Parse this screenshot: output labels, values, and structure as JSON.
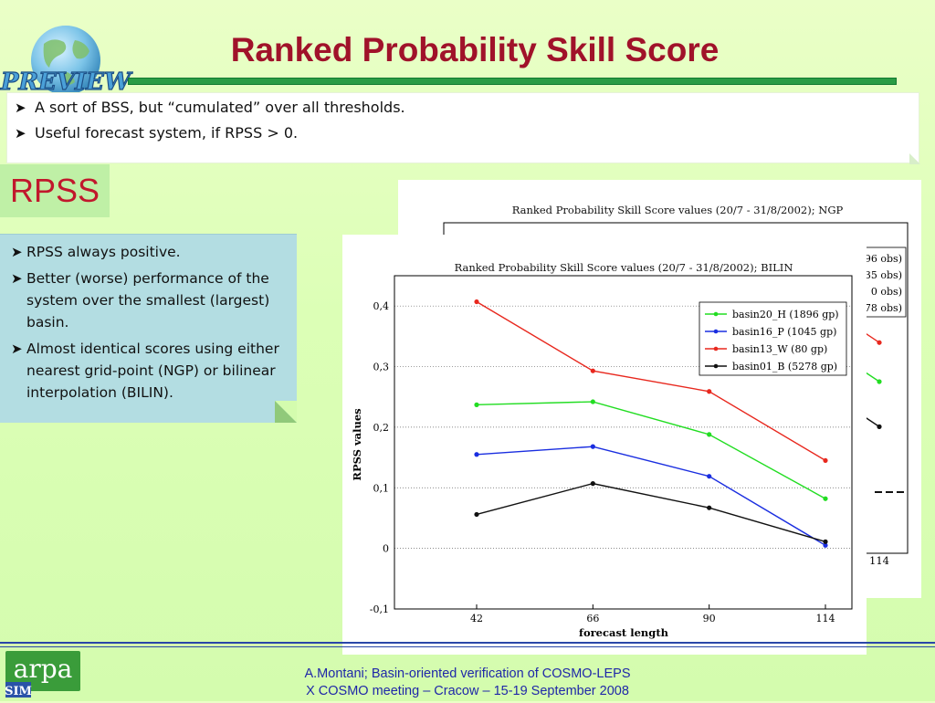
{
  "logo_text": "PREVIEW",
  "slide_title": "Ranked Probability Skill Score",
  "top_bullets": [
    "A sort of BSS, but “cumulated” over all thresholds.",
    "Useful forecast system, if RPSS > 0."
  ],
  "section_label": "RPSS",
  "side_bullets": [
    "RPSS always positive.",
    "Better (worse) performance of the system over the smallest (largest) basin.",
    "Almost identical scores using either nearest grid-point (NGP) or bilinear interpolation (BILIN)."
  ],
  "footer": {
    "line1": "A.Montani; Basin-oriented verification of COSMO-LEPS",
    "line2": "X COSMO meeting – Cracow – 15-19 September 2008",
    "org_logo": "arpa SIM"
  },
  "chart_data": [
    {
      "type": "line",
      "title": "Ranked Probability Skill Score values (20/7 - 31/8/2002); NGP",
      "partially_hidden": true,
      "visible_legend_fragments": [
        "96 obs)",
        "35 obs)",
        "0 obs)",
        "78 obs)"
      ],
      "visible_x_tick": "114",
      "visible_points": [
        {
          "x": 114,
          "y": 0.24,
          "color": "#e8281e"
        },
        {
          "x": 114,
          "y": 0.175,
          "color": "#22dd22"
        },
        {
          "x": 114,
          "y": 0.1,
          "color": "#111111"
        }
      ]
    },
    {
      "type": "line",
      "title": "Ranked Probability Skill Score values (20/7 - 31/8/2002); BILIN",
      "xlabel": "forecast length",
      "ylabel": "RPSS values",
      "x": [
        42,
        66,
        90,
        114
      ],
      "x_tick_labels": [
        "42",
        "66",
        "90",
        "114"
      ],
      "ylim": [
        -0.1,
        0.45
      ],
      "y_ticks": [
        -0.1,
        0,
        0.1,
        0.2,
        0.3,
        0.4
      ],
      "y_tick_labels": [
        "-0,1",
        "0",
        "0,1",
        "0,2",
        "0,3",
        "0,4"
      ],
      "grid": "dotted horizontal",
      "legend_position": "top-right",
      "series": [
        {
          "name": "basin20_H (1896 gp)",
          "color": "#22dd22",
          "values": [
            0.237,
            0.242,
            0.188,
            0.082
          ]
        },
        {
          "name": "basin16_P (1045 gp)",
          "color": "#1a2ee0",
          "values": [
            0.155,
            0.168,
            0.119,
            0.005
          ]
        },
        {
          "name": "basin13_W (80 gp)",
          "color": "#e8281e",
          "values": [
            0.407,
            0.293,
            0.259,
            0.145
          ]
        },
        {
          "name": "basin01_B (5278 gp)",
          "color": "#111111",
          "values": [
            0.056,
            0.107,
            0.067,
            0.011
          ]
        }
      ]
    }
  ]
}
